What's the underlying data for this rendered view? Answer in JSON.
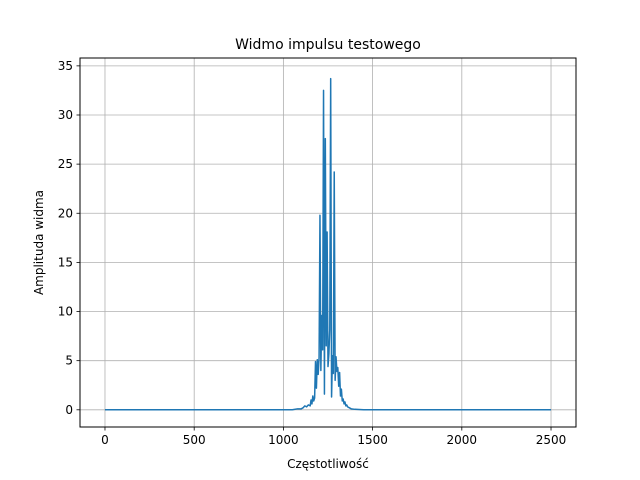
{
  "chart_data": {
    "type": "line",
    "title": "Widmo impulsu testowego",
    "xlabel": "Częstotliwość",
    "ylabel": "Amplituda widma",
    "xlim": [
      -140,
      2640
    ],
    "ylim": [
      -1.75,
      35.8
    ],
    "xticks": [
      0,
      500,
      1000,
      1500,
      2000,
      2500
    ],
    "yticks": [
      0,
      5,
      10,
      15,
      20,
      25,
      30,
      35
    ],
    "grid": true,
    "legend": "none",
    "line_color": "#1f77b4",
    "series": [
      {
        "x": [
          0,
          1050,
          1080,
          1100,
          1110,
          1120,
          1130,
          1140,
          1150,
          1155,
          1160,
          1165,
          1170,
          1175,
          1180,
          1185,
          1190,
          1195,
          1200,
          1205,
          1210,
          1215,
          1220,
          1225,
          1230,
          1235,
          1240,
          1245,
          1250,
          1255,
          1260,
          1265,
          1270,
          1275,
          1280,
          1285,
          1290,
          1295,
          1300,
          1305,
          1310,
          1315,
          1320,
          1325,
          1330,
          1335,
          1340,
          1345,
          1350,
          1355,
          1360,
          1370,
          1380,
          1400,
          1450,
          2500
        ],
        "y": [
          0,
          0,
          0.1,
          0.1,
          0.2,
          0.4,
          0.3,
          0.5,
          0.4,
          1.0,
          0.6,
          1.4,
          0.9,
          1.2,
          4.9,
          2.2,
          5.1,
          3.6,
          5.3,
          19.8,
          4.0,
          9.6,
          6.1,
          32.5,
          1.6,
          27.6,
          6.5,
          18.1,
          4.4,
          5.7,
          8.2,
          33.7,
          1.3,
          5.5,
          3.7,
          24.2,
          3.0,
          5.4,
          3.9,
          4.3,
          2.4,
          3.8,
          1.4,
          2.1,
          0.9,
          1.1,
          0.6,
          0.8,
          0.4,
          0.5,
          0.3,
          0.2,
          0.1,
          0.05,
          0,
          0
        ]
      }
    ]
  }
}
